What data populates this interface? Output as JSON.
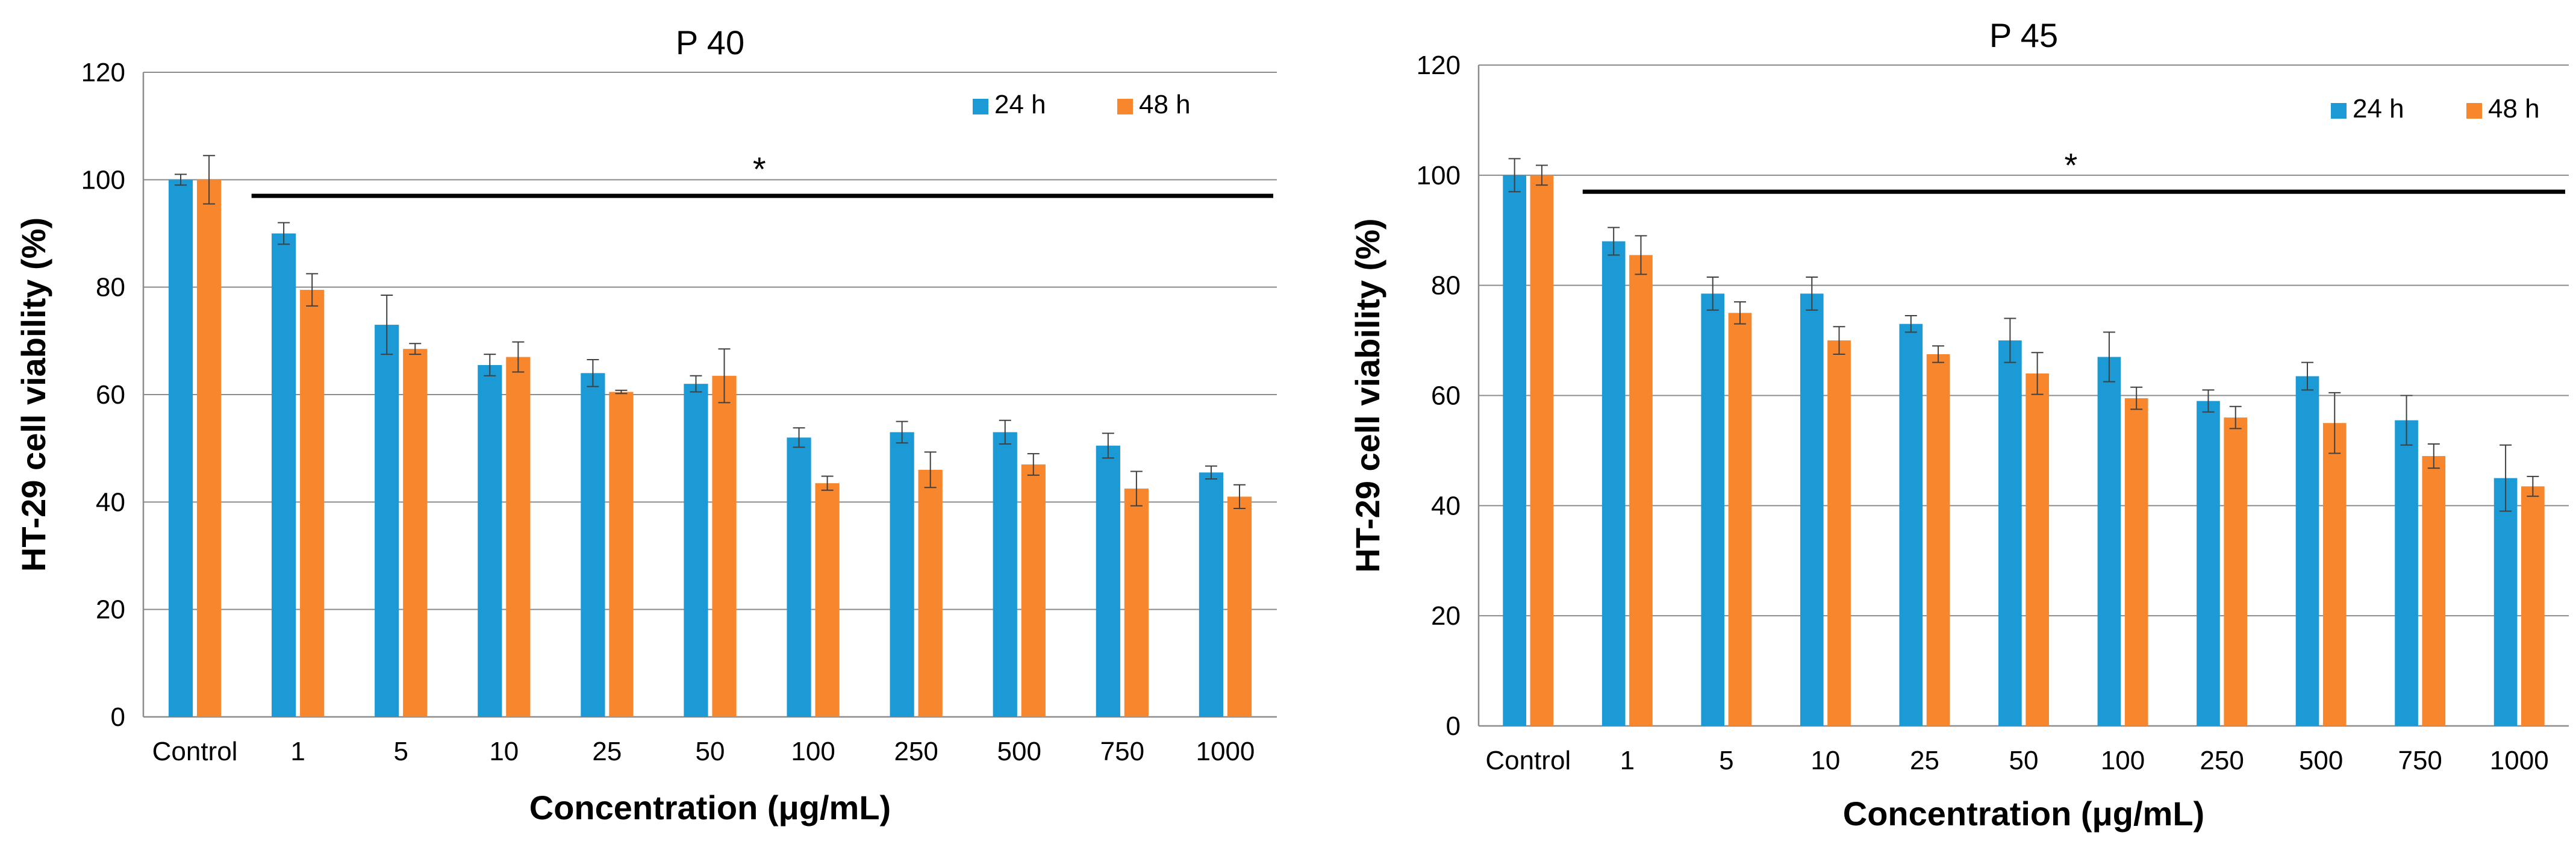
{
  "chart_data": [
    {
      "type": "bar",
      "title": "P 40",
      "xlabel": "Concentration (μg/mL)",
      "ylabel": "HT-29 cell viability (%)",
      "ylim": [
        0,
        120
      ],
      "yticks": [
        0,
        20,
        40,
        60,
        80,
        100,
        120
      ],
      "categories": [
        "Control",
        "1",
        "5",
        "10",
        "25",
        "50",
        "100",
        "250",
        "500",
        "750",
        "1000"
      ],
      "series": [
        {
          "name": "24 h",
          "color": "#1b9ad6",
          "values": [
            100,
            90,
            73,
            65.5,
            64,
            62,
            52,
            53,
            53,
            50.5,
            45.5
          ],
          "errors": [
            1,
            2,
            5.5,
            2,
            2.5,
            1.5,
            1.8,
            2,
            2.2,
            2.3,
            1.2
          ]
        },
        {
          "name": "48 h",
          "color": "#f7862d",
          "values": [
            100,
            79.5,
            68.5,
            67,
            60.5,
            63.5,
            43.5,
            46,
            47,
            42.5,
            41
          ],
          "errors": [
            4.5,
            3,
            1,
            2.8,
            0.3,
            5,
            1.3,
            3.3,
            2,
            3.2,
            2.2
          ]
        }
      ],
      "significance": {
        "label": "*",
        "y_value": 97
      },
      "legend_position": "top-right"
    },
    {
      "type": "bar",
      "title": "P 45",
      "xlabel": "Concentration (μg/mL)",
      "ylabel": "HT-29 cell viability (%)",
      "ylim": [
        0,
        120
      ],
      "yticks": [
        0,
        20,
        40,
        60,
        80,
        100,
        120
      ],
      "categories": [
        "Control",
        "1",
        "5",
        "10",
        "25",
        "50",
        "100",
        "250",
        "500",
        "750",
        "1000"
      ],
      "series": [
        {
          "name": "24 h",
          "color": "#1b9ad6",
          "values": [
            100,
            88,
            78.5,
            78.5,
            73,
            70,
            67,
            59,
            63.5,
            55.5,
            45
          ],
          "errors": [
            3,
            2.5,
            3,
            3,
            1.5,
            4,
            4.5,
            2,
            2.5,
            4.5,
            6
          ]
        },
        {
          "name": "48 h",
          "color": "#f7862d",
          "values": [
            100,
            85.5,
            75,
            70,
            67.5,
            64,
            59.5,
            56,
            55,
            49,
            43.5
          ],
          "errors": [
            1.8,
            3.5,
            2,
            2.5,
            1.5,
            3.8,
            2,
            2,
            5.5,
            2.2,
            1.8
          ]
        }
      ],
      "significance": {
        "label": "*",
        "y_value": 97
      },
      "legend_position": "top-right"
    }
  ]
}
